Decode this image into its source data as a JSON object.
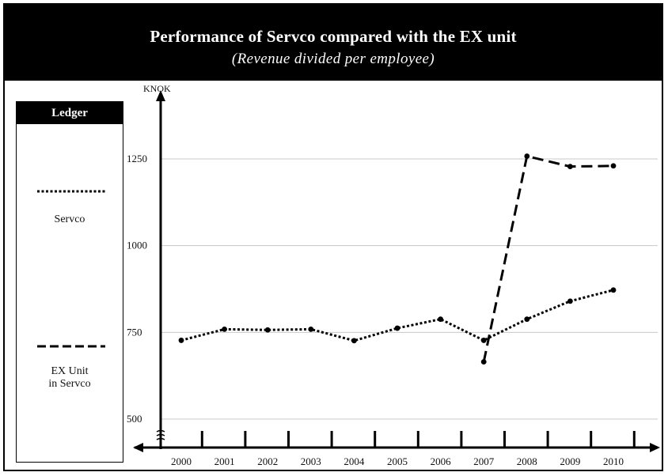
{
  "header": {
    "title": "Performance of Servco compared with the EX unit",
    "subtitle": "(Revenue divided per employee)"
  },
  "legend": {
    "title": "Ledger",
    "items": [
      {
        "label": "Servco",
        "style": "dotted"
      },
      {
        "label": "EX Unit\nin Servco",
        "style": "dashed"
      }
    ]
  },
  "chart_data": {
    "type": "line",
    "title": "Performance of Servco compared with the EX unit",
    "subtitle": "(Revenue divided per employee)",
    "ylabel": "KNOK",
    "xlabel": "",
    "ylim": [
      450,
      1400
    ],
    "yticks": [
      500,
      750,
      1000,
      1250
    ],
    "grid": true,
    "legend_position": "left",
    "x": [
      "2000",
      "2001",
      "2002",
      "2003",
      "2004",
      "2005",
      "2006",
      "2007",
      "2008",
      "2009",
      "2010"
    ],
    "series": [
      {
        "name": "Servco",
        "style": "dotted",
        "color": "#000000",
        "values": [
          727,
          759,
          757,
          759,
          726,
          762,
          788,
          727,
          788,
          840,
          872
        ]
      },
      {
        "name": "EX Unit in Servco",
        "style": "dashed",
        "color": "#000000",
        "values": [
          null,
          null,
          null,
          null,
          null,
          null,
          null,
          665,
          1258,
          1228,
          1230
        ]
      }
    ]
  }
}
